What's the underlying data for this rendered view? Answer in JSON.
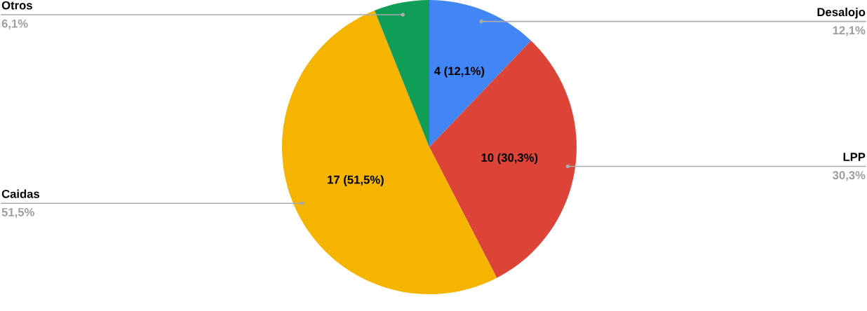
{
  "chart_data": {
    "type": "pie",
    "categories": [
      "Desalojo",
      "LPP",
      "Caidas",
      "Otros"
    ],
    "values": [
      4,
      10,
      17,
      2
    ],
    "colors": [
      "#4285f4",
      "#db4437",
      "#f4b400",
      "#0f9d58"
    ],
    "value_labels": [
      "4 (12,1%)",
      "10 (30,3%)",
      "17 (51,5%)",
      null
    ],
    "annotations": [
      {
        "text": "12,1%",
        "x": "Desalojo"
      },
      {
        "text": "30,3%",
        "x": "LPP"
      },
      {
        "text": "51,5%",
        "x": "Caidas"
      },
      {
        "text": "6,1%",
        "x": "Otros"
      }
    ],
    "legend": false
  }
}
